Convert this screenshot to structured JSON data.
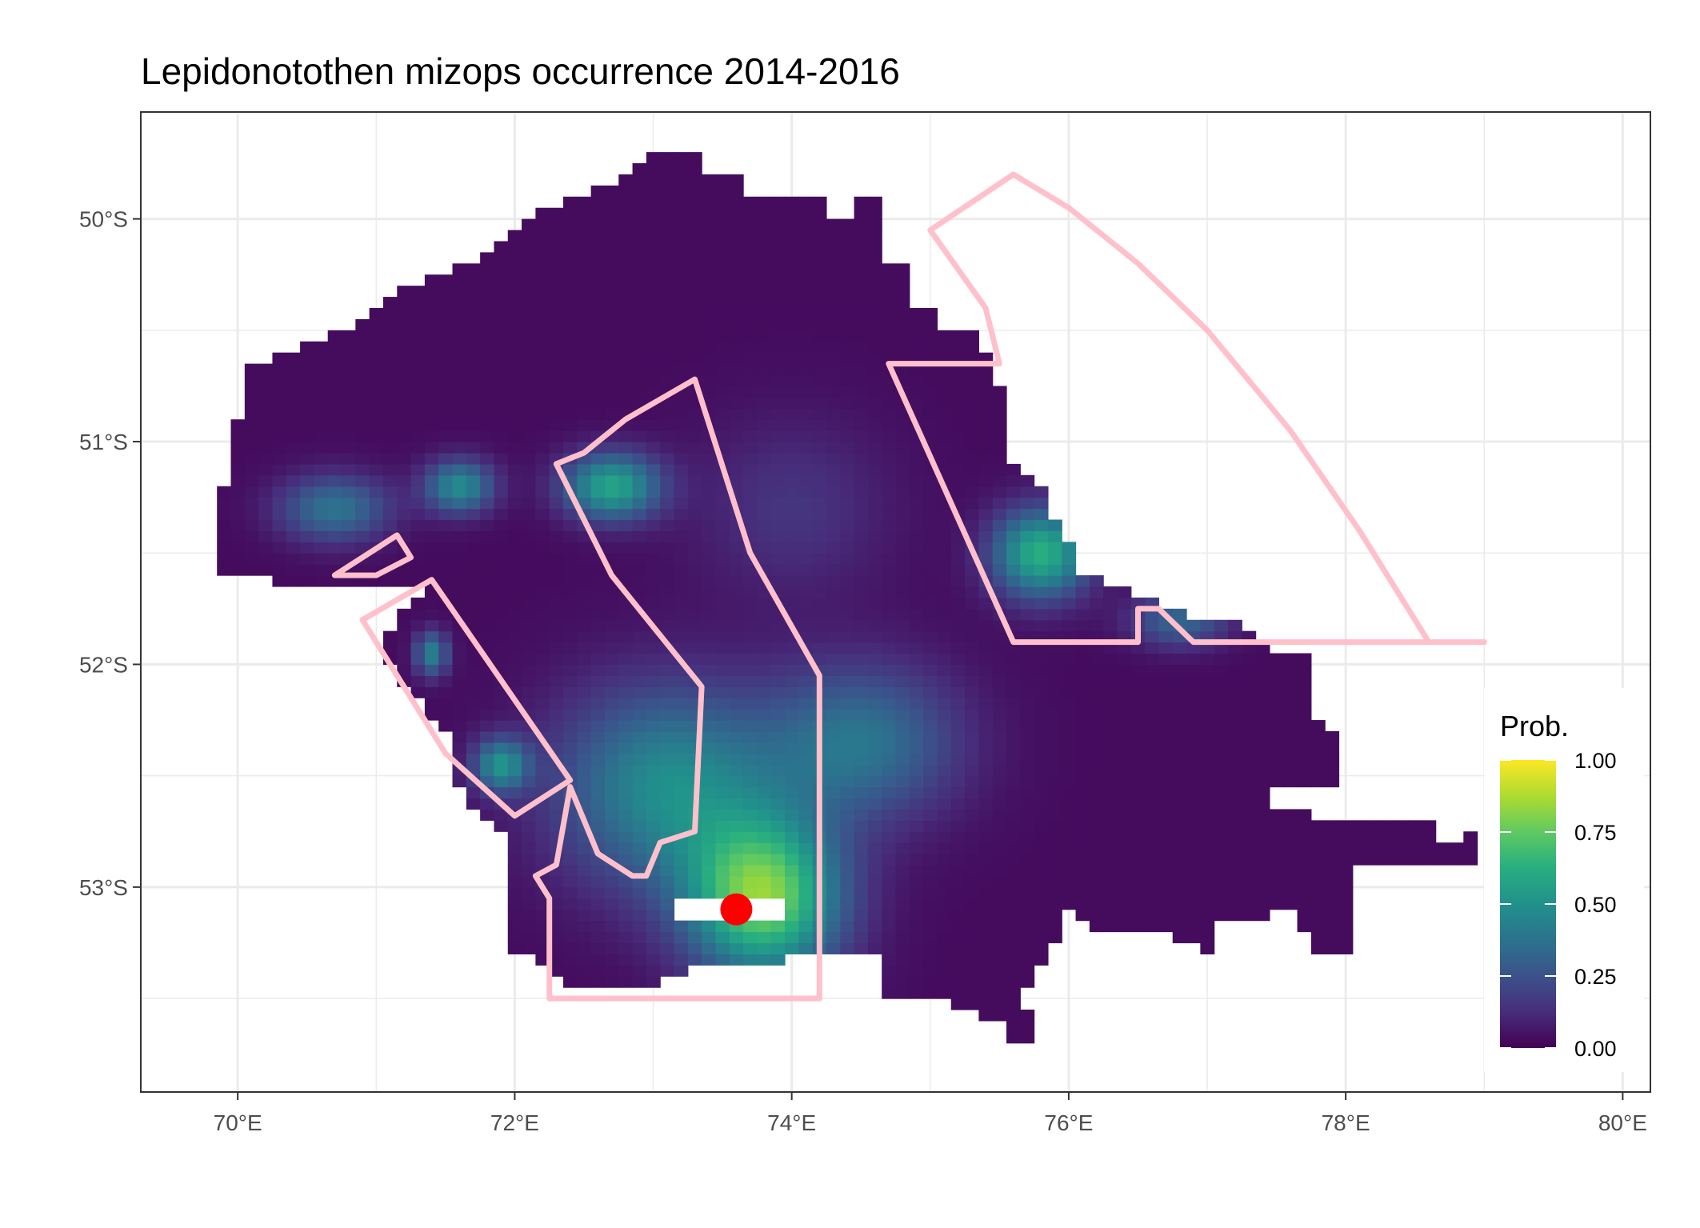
{
  "title": "Lepidonotothen mizops  occurrence 2014-2016",
  "map": {
    "x_ticks": [
      {
        "value": 70,
        "label": "70°E"
      },
      {
        "value": 72,
        "label": "72°E"
      },
      {
        "value": 74,
        "label": "74°E"
      },
      {
        "value": 76,
        "label": "76°E"
      },
      {
        "value": 78,
        "label": "78°E"
      },
      {
        "value": 80,
        "label": "80°E"
      }
    ],
    "y_ticks": [
      {
        "value": -50,
        "label": "50°S"
      },
      {
        "value": -51,
        "label": "51°S"
      },
      {
        "value": -52,
        "label": "52°S"
      },
      {
        "value": -53,
        "label": "53°S"
      }
    ],
    "lon_range": [
      69.3,
      80.2
    ],
    "lat_range": [
      -53.92,
      -49.52
    ],
    "grid": true,
    "polygon_color": "#ffc0cb",
    "marker": {
      "lon": 73.6,
      "lat": -53.1,
      "color": "#ff0000"
    }
  },
  "legend": {
    "title": "Prob.",
    "ticks": [
      "1.00",
      "0.75",
      "0.50",
      "0.25",
      "0.00"
    ],
    "colormap": "viridis"
  }
}
